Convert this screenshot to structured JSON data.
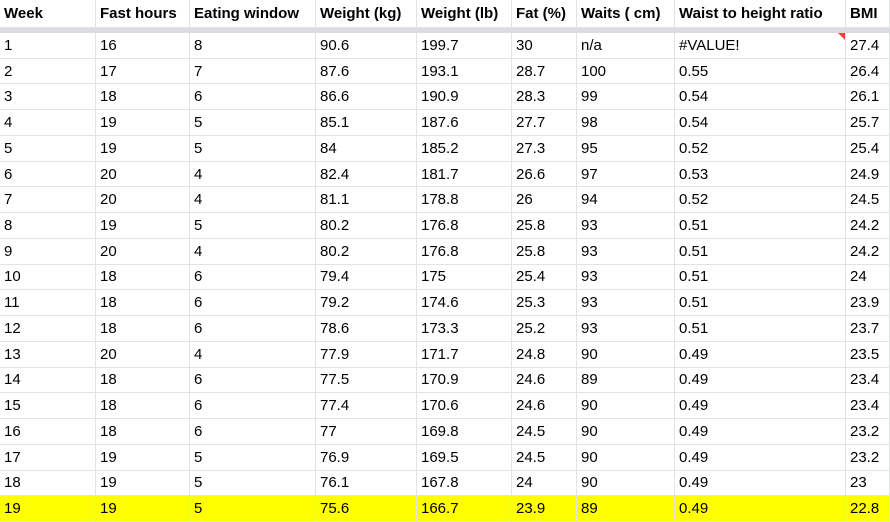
{
  "table": {
    "header": [
      "Week",
      "Fast hours",
      "Eating window",
      "Weight (kg)",
      "Weight (lb)",
      "Fat (%)",
      "Waits ( cm)",
      "Waist to height ratio",
      "BMI"
    ],
    "rows": [
      [
        "1",
        "16",
        "8",
        "90.6",
        "199.7",
        "30",
        "n/a",
        "#VALUE!",
        "27.4"
      ],
      [
        "2",
        "17",
        "7",
        "87.6",
        "193.1",
        "28.7",
        "100",
        "0.55",
        "26.4"
      ],
      [
        "3",
        "18",
        "6",
        "86.6",
        "190.9",
        "28.3",
        "99",
        "0.54",
        "26.1"
      ],
      [
        "4",
        "19",
        "5",
        "85.1",
        "187.6",
        "27.7",
        "98",
        "0.54",
        "25.7"
      ],
      [
        "5",
        "19",
        "5",
        "84",
        "185.2",
        "27.3",
        "95",
        "0.52",
        "25.4"
      ],
      [
        "6",
        "20",
        "4",
        "82.4",
        "181.7",
        "26.6",
        "97",
        "0.53",
        "24.9"
      ],
      [
        "7",
        "20",
        "4",
        "81.1",
        "178.8",
        "26",
        "94",
        "0.52",
        "24.5"
      ],
      [
        "8",
        "19",
        "5",
        "80.2",
        "176.8",
        "25.8",
        "93",
        "0.51",
        "24.2"
      ],
      [
        "9",
        "20",
        "4",
        "80.2",
        "176.8",
        "25.8",
        "93",
        "0.51",
        "24.2"
      ],
      [
        "10",
        "18",
        "6",
        "79.4",
        "175",
        "25.4",
        "93",
        "0.51",
        "24"
      ],
      [
        "11",
        "18",
        "6",
        "79.2",
        "174.6",
        "25.3",
        "93",
        "0.51",
        "23.9"
      ],
      [
        "12",
        "18",
        "6",
        "78.6",
        "173.3",
        "25.2",
        "93",
        "0.51",
        "23.7"
      ],
      [
        "13",
        "20",
        "4",
        "77.9",
        "171.7",
        "24.8",
        "90",
        "0.49",
        "23.5"
      ],
      [
        "14",
        "18",
        "6",
        "77.5",
        "170.9",
        "24.6",
        "89",
        "0.49",
        "23.4"
      ],
      [
        "15",
        "18",
        "6",
        "77.4",
        "170.6",
        "24.6",
        "90",
        "0.49",
        "23.4"
      ],
      [
        "16",
        "18",
        "6",
        "77",
        "169.8",
        "24.5",
        "90",
        "0.49",
        "23.2"
      ],
      [
        "17",
        "19",
        "5",
        "76.9",
        "169.5",
        "24.5",
        "90",
        "0.49",
        "23.2"
      ],
      [
        "18",
        "19",
        "5",
        "76.1",
        "167.8",
        "24",
        "90",
        "0.49",
        "23"
      ],
      [
        "19",
        "19",
        "5",
        "75.6",
        "166.7",
        "23.9",
        "89",
        "0.49",
        "22.8"
      ]
    ]
  }
}
